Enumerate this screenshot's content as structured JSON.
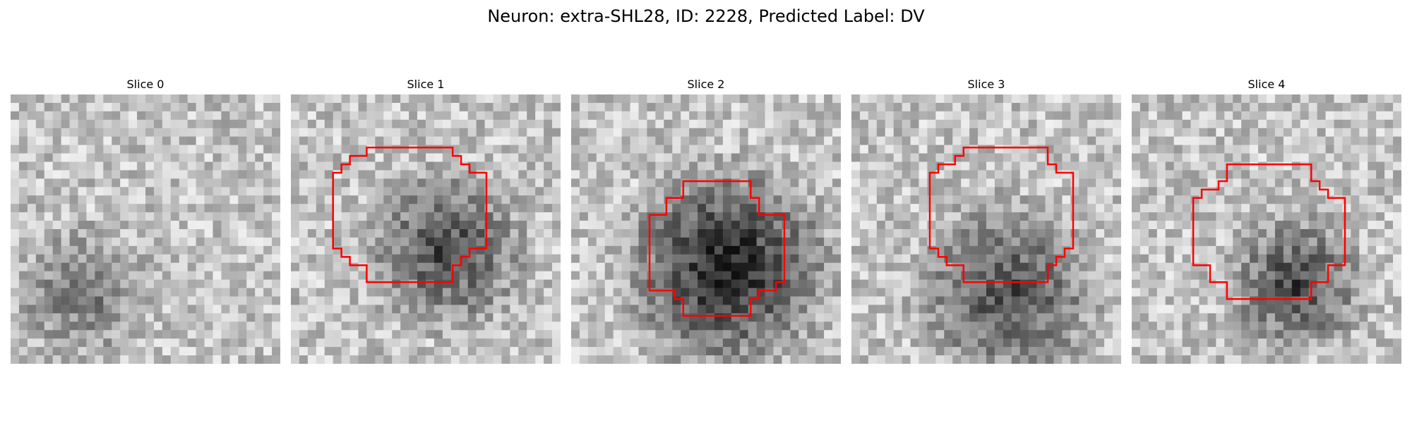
{
  "figure": {
    "title": "Neuron: extra-SHL28, ID: 2228, Predicted Label: DV"
  },
  "panels": [
    {
      "title": "Slice 0",
      "seed": 11,
      "blob": {
        "cx": 8,
        "cy": 23,
        "r": 6,
        "dark": 70
      },
      "outline": "none"
    },
    {
      "title": "Slice 1",
      "seed": 23,
      "blob": {
        "cx": 18,
        "cy": 18,
        "r": 7,
        "dark": 110
      },
      "outline": "contour"
    },
    {
      "title": "Slice 2",
      "seed": 37,
      "blob": {
        "cx": 18,
        "cy": 20,
        "r": 9,
        "dark": 150
      },
      "outline": "contour"
    },
    {
      "title": "Slice 3",
      "seed": 51,
      "blob": {
        "cx": 18,
        "cy": 23,
        "r": 8,
        "dark": 110
      },
      "outline": "contour"
    },
    {
      "title": "Slice 4",
      "seed": 67,
      "blob": {
        "cx": 19,
        "cy": 22,
        "r": 6,
        "dark": 115
      },
      "outline": "contour"
    }
  ],
  "colors": {
    "contour": "#ff0000"
  }
}
